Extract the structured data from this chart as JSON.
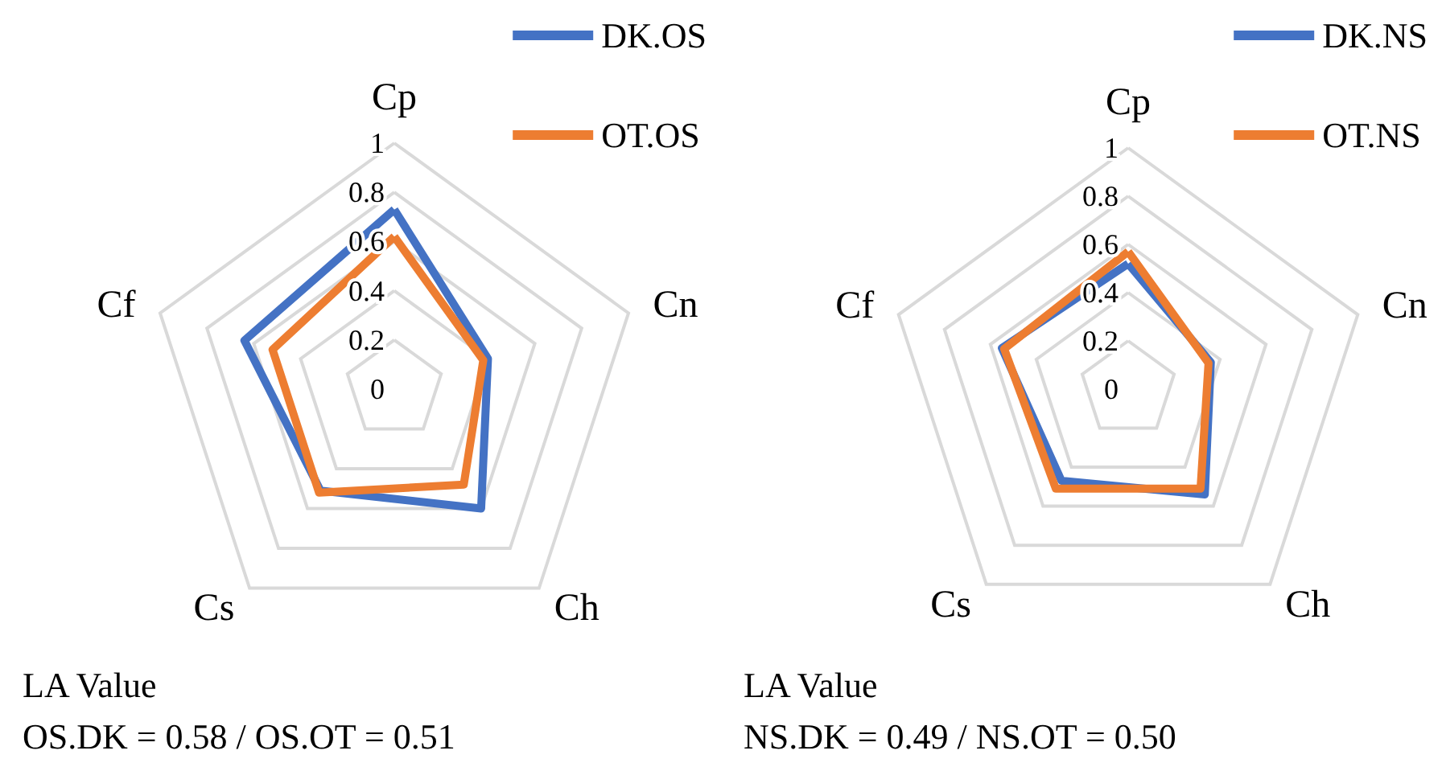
{
  "chart_data": [
    {
      "type": "radar",
      "categories": [
        "Cp",
        "Cn",
        "Ch",
        "Cs",
        "Cf"
      ],
      "ylim": [
        0,
        1
      ],
      "yticks": [
        0,
        0.2,
        0.4,
        0.6,
        0.8,
        1
      ],
      "grid": true,
      "legend": "top right",
      "marker": "none",
      "series": [
        {
          "name": "DK.OS",
          "color": "#4472c4",
          "values": [
            0.73,
            0.4,
            0.6,
            0.51,
            0.64
          ]
        },
        {
          "name": "OT.OS",
          "color": "#ed7d31",
          "values": [
            0.62,
            0.38,
            0.48,
            0.52,
            0.52
          ]
        }
      ],
      "annotations": [
        "LA Value",
        "OS.DK = 0.58 / OS.OT = 0.51"
      ]
    },
    {
      "type": "radar",
      "categories": [
        "Cp",
        "Cn",
        "Ch",
        "Cs",
        "Cf"
      ],
      "ylim": [
        0,
        1
      ],
      "yticks": [
        0,
        0.2,
        0.4,
        0.6,
        0.8,
        1
      ],
      "grid": true,
      "legend": "top right",
      "marker": "none",
      "series": [
        {
          "name": "DK.NS",
          "color": "#4472c4",
          "values": [
            0.52,
            0.36,
            0.54,
            0.47,
            0.55
          ]
        },
        {
          "name": "OT.NS",
          "color": "#ed7d31",
          "values": [
            0.57,
            0.35,
            0.51,
            0.51,
            0.54
          ]
        }
      ],
      "annotations": [
        "LA Value",
        "NS.DK = 0.49 / NS.OT = 0.50"
      ]
    }
  ]
}
